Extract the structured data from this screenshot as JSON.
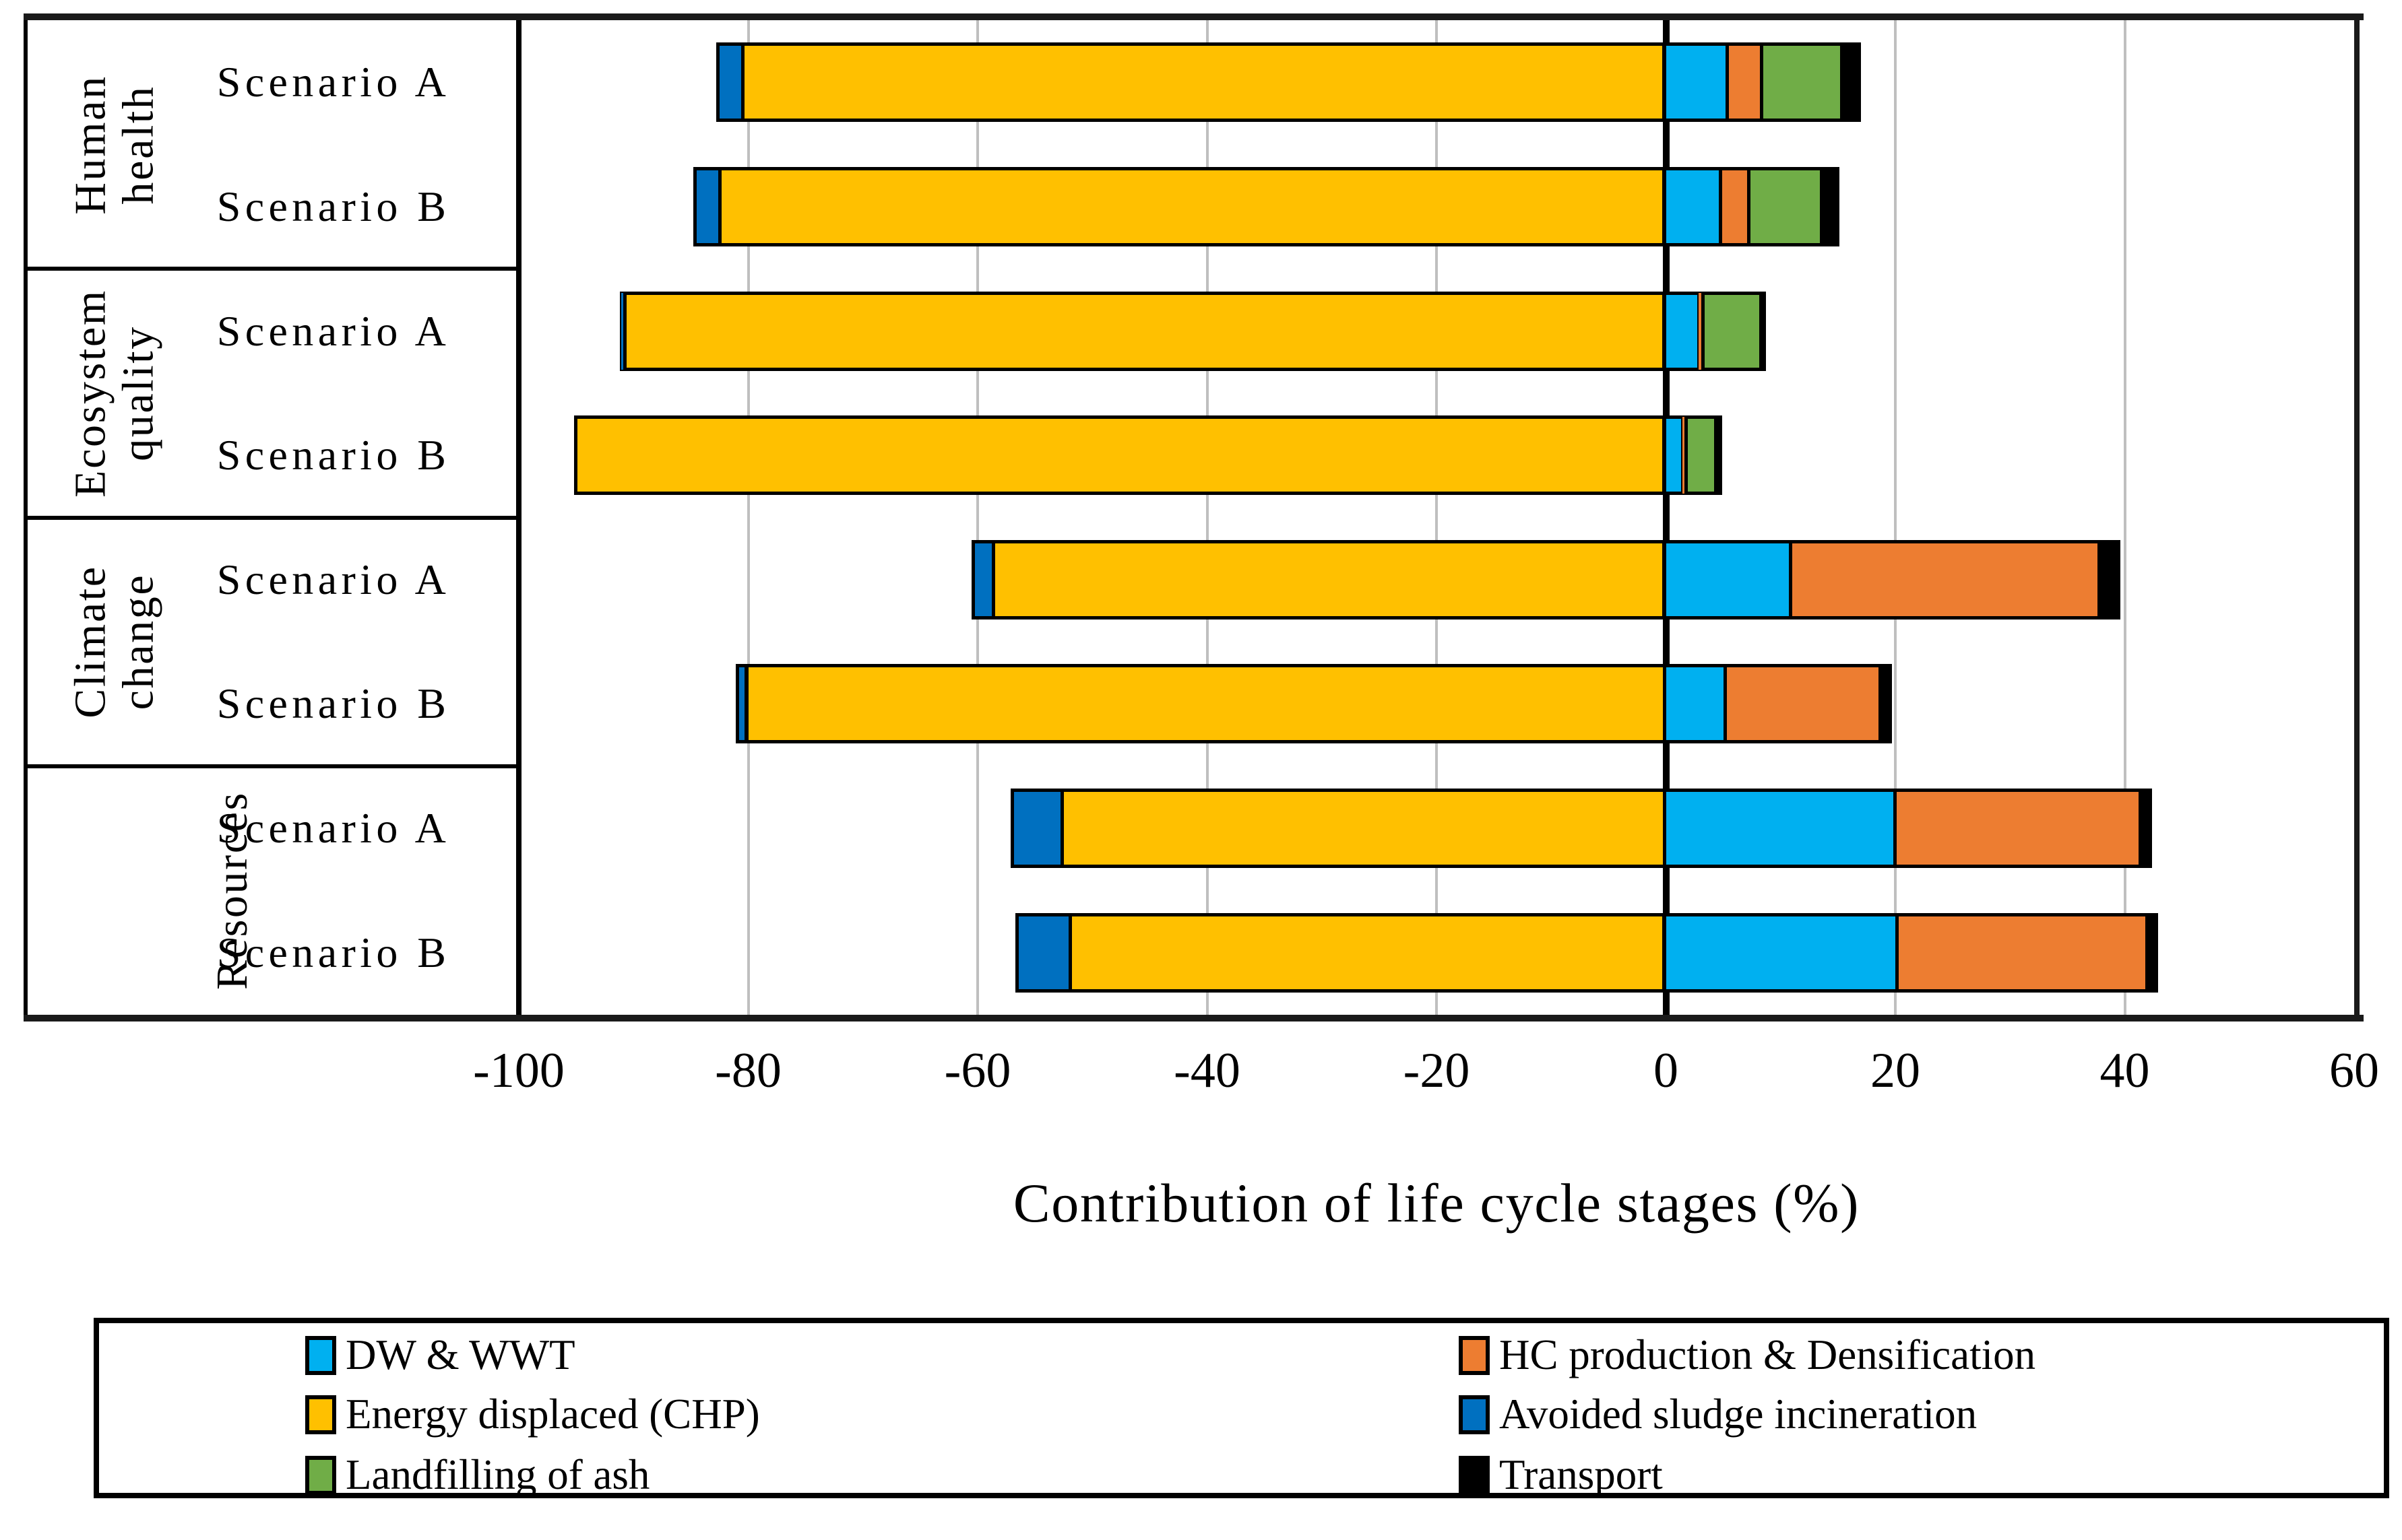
{
  "chart_data": {
    "type": "bar",
    "orientation": "horizontal",
    "title": "",
    "xlabel": "Contribution of life cycle stages (%)",
    "ylabel": "",
    "xlim": [
      -100,
      60
    ],
    "xticks": [
      -100,
      -80,
      -60,
      -40,
      -20,
      0,
      20,
      40,
      60
    ],
    "grid": true,
    "gridline_color": "#BFBFBF",
    "axis_color": "#000000",
    "legend_position": "bottom",
    "stack_order_negative": [
      "avoided_sludge",
      "energy_displaced"
    ],
    "stack_order_positive": [
      "dw_wwt",
      "hc_production",
      "landfilling",
      "transport"
    ],
    "series_colors": {
      "dw_wwt": "#00B0F0",
      "energy_displaced": "#FFC000",
      "landfilling": "#70AD47",
      "hc_production": "#ED7D31",
      "avoided_sludge": "#0070C0",
      "transport": "#000000"
    },
    "groups": [
      {
        "label": "Human health",
        "label_lines": [
          "Human",
          "health"
        ],
        "rows": [
          {
            "scenario": "Scenario A",
            "values": {
              "dw_wwt": 5.5,
              "energy_displaced": -80.3,
              "landfilling": 7.0,
              "hc_production": 3.0,
              "avoided_sludge": -2.5,
              "transport": 1.5
            }
          },
          {
            "scenario": "Scenario B",
            "values": {
              "dw_wwt": 4.9,
              "energy_displaced": -82.3,
              "landfilling": 6.3,
              "hc_production": 2.5,
              "avoided_sludge": -2.5,
              "transport": 1.4
            }
          }
        ]
      },
      {
        "label": "Ecosystem quality",
        "label_lines": [
          "Ecosystem",
          "quality"
        ],
        "rows": [
          {
            "scenario": "Scenario A",
            "values": {
              "dw_wwt": 3.0,
              "energy_displaced": -90.6,
              "landfilling": 5.0,
              "hc_production": 0.4,
              "avoided_sludge": -0.6,
              "transport": 0.3
            }
          },
          {
            "scenario": "Scenario B",
            "values": {
              "dw_wwt": 1.6,
              "energy_displaced": -95.2,
              "landfilling": 2.6,
              "hc_production": 0.3,
              "avoided_sludge": 0,
              "transport": 0.4
            }
          }
        ]
      },
      {
        "label": "Climate change",
        "label_lines": [
          "Climate",
          "change"
        ],
        "rows": [
          {
            "scenario": "Scenario A",
            "values": {
              "dw_wwt": 11.0,
              "energy_displaced": -58.5,
              "landfilling": 0,
              "hc_production": 26.9,
              "avoided_sludge": -2.0,
              "transport": 1.7
            }
          },
          {
            "scenario": "Scenario B",
            "values": {
              "dw_wwt": 5.3,
              "energy_displaced": -80.0,
              "landfilling": 0,
              "hc_production": 13.5,
              "avoided_sludge": -1.1,
              "transport": 0.9
            }
          }
        ]
      },
      {
        "label": "Resources",
        "label_lines": [
          "Resources"
        ],
        "rows": [
          {
            "scenario": "Scenario A",
            "values": {
              "dw_wwt": 20.1,
              "energy_displaced": -52.5,
              "landfilling": 0,
              "hc_production": 21.4,
              "avoided_sludge": -4.6,
              "transport": 0.9
            }
          },
          {
            "scenario": "Scenario B",
            "values": {
              "dw_wwt": 20.3,
              "energy_displaced": -51.8,
              "landfilling": 0,
              "hc_production": 21.8,
              "avoided_sludge": -4.9,
              "transport": 0.8
            }
          }
        ]
      }
    ],
    "legend": {
      "columns": [
        [
          {
            "key": "dw_wwt",
            "label": "DW & WWT"
          },
          {
            "key": "energy_displaced",
            "label": "Energy displaced (CHP)"
          },
          {
            "key": "landfilling",
            "label": "Landfilling of ash"
          }
        ],
        [
          {
            "key": "hc_production",
            "label": "HC production & Densification"
          },
          {
            "key": "avoided_sludge",
            "label": "Avoided sludge incineration"
          },
          {
            "key": "transport",
            "label": "Transport"
          }
        ]
      ]
    }
  }
}
